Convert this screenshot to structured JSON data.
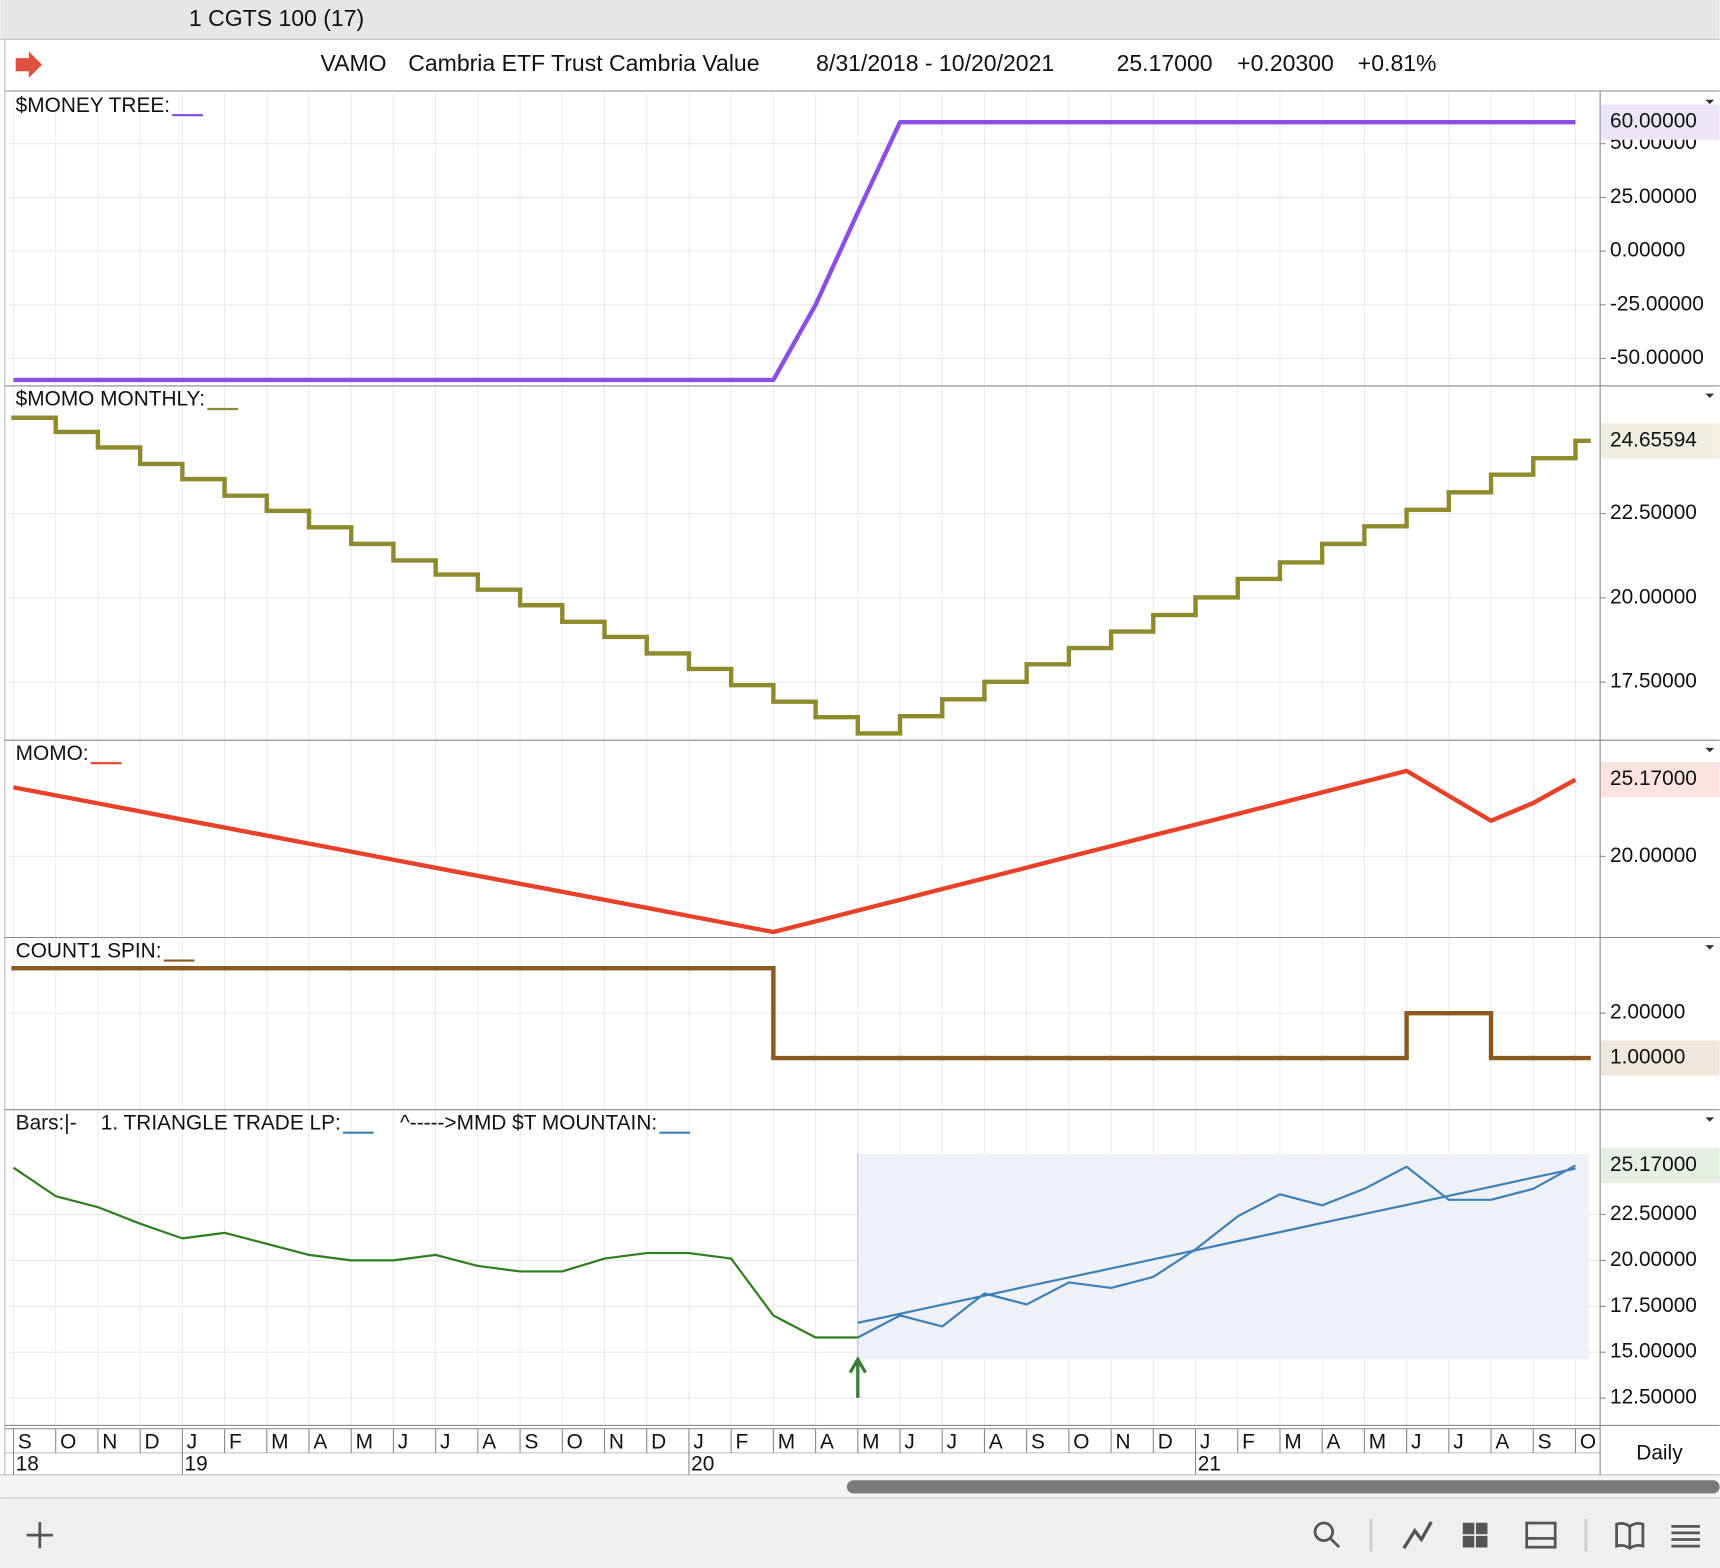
{
  "window": {
    "title": "1 CGTS 100 (17)"
  },
  "header": {
    "symbol": "VAMO",
    "name": "Cambria ETF Trust Cambria Value",
    "range": "8/31/2018 - 10/20/2021",
    "last": "25.17000",
    "change": "+0.20300",
    "change_pct": "+0.81%"
  },
  "x_axis": {
    "categories": [
      "S",
      "O",
      "N",
      "D",
      "J",
      "F",
      "M",
      "A",
      "M",
      "J",
      "J",
      "A",
      "S",
      "O",
      "N",
      "D",
      "J",
      "F",
      "M",
      "A",
      "M",
      "J",
      "J",
      "A",
      "S",
      "O",
      "N",
      "D",
      "J",
      "F",
      "M",
      "A",
      "M",
      "J",
      "J",
      "A",
      "S",
      "O"
    ],
    "year_labels": [
      "18",
      null,
      null,
      null,
      "19",
      null,
      null,
      null,
      null,
      null,
      null,
      null,
      null,
      null,
      null,
      null,
      "20",
      null,
      null,
      null,
      null,
      null,
      null,
      null,
      null,
      null,
      null,
      null,
      "21",
      null,
      null,
      null,
      null,
      null,
      null,
      null,
      null,
      null
    ],
    "interval": "Daily"
  },
  "chart_data": [
    {
      "type": "line",
      "legend": [
        {
          "text": "$MONEY TREE:",
          "color": "#8b4fe8"
        }
      ],
      "series": [
        {
          "color": "#8b4fe8",
          "values": [
            -60,
            -60,
            -60,
            -60,
            -60,
            -60,
            -60,
            -60,
            -60,
            -60,
            -60,
            -60,
            -60,
            -60,
            -60,
            -60,
            -60,
            -60,
            -60,
            -25,
            18,
            60,
            60,
            60,
            60,
            60,
            60,
            60,
            60,
            60,
            60,
            60,
            60,
            60,
            60,
            60,
            60,
            60
          ]
        }
      ],
      "ylim": [
        -62.8,
        73.5
      ],
      "yticks": [
        {
          "value": 50,
          "label": "50.00000"
        },
        {
          "value": 25,
          "label": "25.00000"
        },
        {
          "value": 0,
          "label": "0.00000"
        },
        {
          "value": -25,
          "label": "-25.00000"
        },
        {
          "value": -50,
          "label": "-50.00000"
        }
      ],
      "current": {
        "value": 60,
        "label": "60.00000"
      },
      "current_color": "#ece5f8"
    },
    {
      "type": "step",
      "legend": [
        {
          "text": "$MOMO MONTHLY:",
          "color": "#8f8a2e"
        }
      ],
      "series": [
        {
          "color": "#8f8a2e",
          "values": [
            25.34,
            24.92,
            24.46,
            23.97,
            23.52,
            23.03,
            22.58,
            22.09,
            21.6,
            21.11,
            20.69,
            20.24,
            19.78,
            19.29,
            18.84,
            18.35,
            17.89,
            17.41,
            16.92,
            16.46,
            15.98,
            16.49,
            16.99,
            17.51,
            18.03,
            18.51,
            19.0,
            19.49,
            20.01,
            20.56,
            21.05,
            21.6,
            22.12,
            22.61,
            23.13,
            23.65,
            24.14,
            24.65594
          ]
        }
      ],
      "ylim": [
        15.78,
        26.25
      ],
      "yticks": [
        {
          "value": 22.5,
          "label": "22.50000"
        },
        {
          "value": 20,
          "label": "20.00000"
        },
        {
          "value": 17.5,
          "label": "17.50000"
        }
      ],
      "current": {
        "value": 24.65594
      },
      "current_color": "#f0efdf"
    },
    {
      "type": "line",
      "legend": [
        {
          "text": "MOMO:",
          "color": "#e8412a"
        }
      ],
      "series": [
        {
          "color": "#e8412a",
          "values": [
            24.65,
            24.11,
            23.57,
            23.03,
            22.48,
            21.94,
            21.4,
            20.86,
            20.32,
            19.77,
            19.23,
            18.69,
            18.15,
            17.61,
            17.07,
            16.53,
            15.98,
            15.44,
            14.9,
            15.62,
            16.35,
            17.07,
            17.8,
            18.52,
            19.24,
            19.97,
            20.69,
            21.42,
            22.14,
            22.86,
            23.59,
            24.31,
            25.04,
            25.76,
            24.08,
            22.4,
            23.6,
            25.17
          ]
        }
      ],
      "ylim": [
        14.53,
        27.76
      ],
      "yticks": [
        {
          "value": 20,
          "label": "20.00000"
        }
      ],
      "current": {
        "value": 25.17,
        "label": "25.17000"
      },
      "current_color": "#fbe3df"
    },
    {
      "type": "step",
      "legend": [
        {
          "text": "COUNT1 SPIN:",
          "color": "#8b5a1e"
        }
      ],
      "series": [
        {
          "color": "#8b5a1e",
          "values": [
            3,
            3,
            3,
            3,
            3,
            3,
            3,
            3,
            3,
            3,
            3,
            3,
            3,
            3,
            3,
            3,
            3,
            3,
            1,
            1,
            1,
            1,
            1,
            1,
            1,
            1,
            1,
            1,
            1,
            1,
            1,
            1,
            1,
            2,
            2,
            1,
            1,
            1
          ]
        }
      ],
      "ylim": [
        -0.15,
        3.66
      ],
      "yticks": [
        {
          "value": 2,
          "label": "2.00000"
        }
      ],
      "current": {
        "value": 1,
        "label": "1.00000"
      },
      "current_color": "#efe6dc"
    },
    {
      "type": "line",
      "legend": [
        {
          "text": "Bars:|-"
        },
        {
          "text": "1. TRIANGLE TRADE LP:",
          "color": "#3e7fb5"
        },
        {
          "text": "^----->MMD $T MOUNTAIN:",
          "color": "#3e7fb5"
        }
      ],
      "series": [
        {
          "color": "#2f7d1f",
          "values": [
            25.05,
            23.5,
            22.9,
            22.0,
            21.2,
            21.5,
            20.9,
            20.3,
            20.0,
            20.0,
            20.3,
            19.7,
            19.4,
            19.4,
            20.1,
            20.4,
            20.4,
            20.1,
            17.0,
            15.8,
            15.8,
            null,
            null,
            null,
            null,
            null,
            null,
            null,
            null,
            null,
            null,
            null,
            null,
            null,
            null,
            null,
            null,
            null
          ]
        },
        {
          "color": "#3e7fb5",
          "values": [
            null,
            null,
            null,
            null,
            null,
            null,
            null,
            null,
            null,
            null,
            null,
            null,
            null,
            null,
            null,
            null,
            null,
            null,
            null,
            null,
            15.8,
            17.0,
            16.4,
            18.2,
            17.6,
            18.8,
            18.5,
            19.1,
            20.6,
            22.4,
            23.6,
            23.0,
            23.9,
            25.1,
            23.3,
            23.3,
            23.9,
            25.17
          ]
        },
        {
          "color": "#3e7fb5",
          "values": [
            null,
            null,
            null,
            null,
            null,
            null,
            null,
            null,
            null,
            null,
            null,
            null,
            null,
            null,
            null,
            null,
            null,
            null,
            null,
            null,
            16.6,
            17.09,
            17.59,
            18.08,
            18.58,
            19.07,
            19.56,
            20.06,
            20.55,
            21.05,
            21.54,
            22.04,
            22.53,
            23.02,
            23.52,
            24.01,
            24.51,
            25.0
          ]
        }
      ],
      "zone": {
        "low": 14.6,
        "high": 25.8
      },
      "ylim": [
        11.01,
        28.15
      ],
      "yticks": [
        {
          "value": 22.5,
          "label": "22.50000"
        },
        {
          "value": 20,
          "label": "20.00000"
        },
        {
          "value": 17.5,
          "label": "17.50000"
        },
        {
          "value": 15,
          "label": "15.00000"
        },
        {
          "value": 12.5,
          "label": "12.50000"
        }
      ],
      "current": {
        "value": 25.17,
        "label": "25.17000"
      },
      "current_color": "#e6f0e2"
    }
  ]
}
